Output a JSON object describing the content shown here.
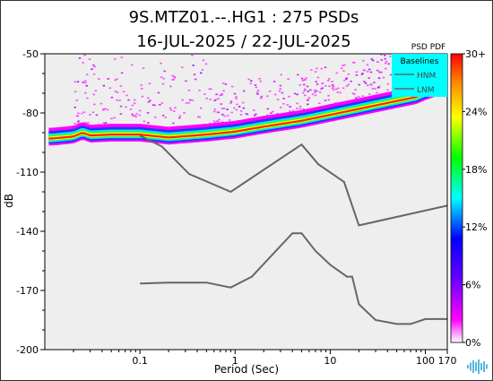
{
  "chart_data": {
    "type": "heatmap",
    "title_lines": [
      "9S.MTZ01.--.HG1 : 275 PSDs",
      "16-JUL-2025 / 22-JUL-2025"
    ],
    "xlabel": "Period (Sec)",
    "ylabel": "dB",
    "x_scale": "log",
    "xlim": [
      0.01,
      170
    ],
    "ylim": [
      -200,
      -50
    ],
    "x_ticks": [
      {
        "value": 0.1,
        "label": "0.1"
      },
      {
        "value": 1,
        "label": "1"
      },
      {
        "value": 10,
        "label": "10"
      },
      {
        "value": 100,
        "label": "100"
      },
      {
        "value": 170,
        "label": "170"
      }
    ],
    "y_ticks": [
      {
        "value": -50,
        "label": "-50"
      },
      {
        "value": -80,
        "label": "-80"
      },
      {
        "value": -110,
        "label": "-110"
      },
      {
        "value": -140,
        "label": "-140"
      },
      {
        "value": -170,
        "label": "-170"
      },
      {
        "value": -200,
        "label": "-200"
      }
    ],
    "background_color": "#eeeeee",
    "colorbar": {
      "title": "PSD PDF",
      "ticks": [
        {
          "value": 30,
          "label": "30+"
        },
        {
          "value": 24,
          "label": "24%"
        },
        {
          "value": 18,
          "label": "18%"
        },
        {
          "value": 12,
          "label": "12%"
        },
        {
          "value": 6,
          "label": "6%"
        },
        {
          "value": 0,
          "label": "0%"
        }
      ],
      "stops": [
        {
          "p": 0.0,
          "color": "#ffffff"
        },
        {
          "p": 0.08,
          "color": "#ff00ff"
        },
        {
          "p": 0.22,
          "color": "#6600ff"
        },
        {
          "p": 0.36,
          "color": "#0000ff"
        },
        {
          "p": 0.5,
          "color": "#00ffff"
        },
        {
          "p": 0.64,
          "color": "#00ff00"
        },
        {
          "p": 0.78,
          "color": "#ffff00"
        },
        {
          "p": 0.9,
          "color": "#ff8800"
        },
        {
          "p": 1.0,
          "color": "#ff0000"
        }
      ]
    },
    "legend": {
      "title": "Baselines",
      "entries": [
        "HNM",
        "LNM"
      ],
      "placement": "top-right",
      "background": "#00ffff"
    },
    "series": [
      {
        "name": "HNM",
        "color": "#666666",
        "x": [
          0.1,
          0.17,
          0.33,
          0.9,
          5.0,
          7.5,
          14,
          20,
          170
        ],
        "y": [
          -91.5,
          -97,
          -111,
          -120,
          -96,
          -106,
          -115,
          -137,
          -127
        ]
      },
      {
        "name": "LNM",
        "color": "#666666",
        "x": [
          0.1,
          0.2,
          0.5,
          0.9,
          1.5,
          4.0,
          5.0,
          7.0,
          10,
          15,
          17,
          20,
          30,
          50,
          70,
          100,
          170
        ],
        "y": [
          -166.5,
          -166,
          -166,
          -168.5,
          -163,
          -141,
          -141,
          -150,
          -157,
          -163,
          -163,
          -177,
          -185,
          -187,
          -187,
          -184.5,
          -184.5
        ]
      }
    ],
    "pdf_ridge": {
      "x": [
        0.012,
        0.02,
        0.025,
        0.03,
        0.05,
        0.1,
        0.2,
        0.5,
        1,
        2,
        5,
        10,
        20,
        50,
        80,
        100,
        130
      ],
      "y": [
        -93,
        -92,
        -90,
        -91.5,
        -91,
        -91,
        -92.5,
        -91,
        -89.5,
        -87,
        -84,
        -81,
        -78,
        -74,
        -72,
        -70,
        -68
      ]
    }
  }
}
